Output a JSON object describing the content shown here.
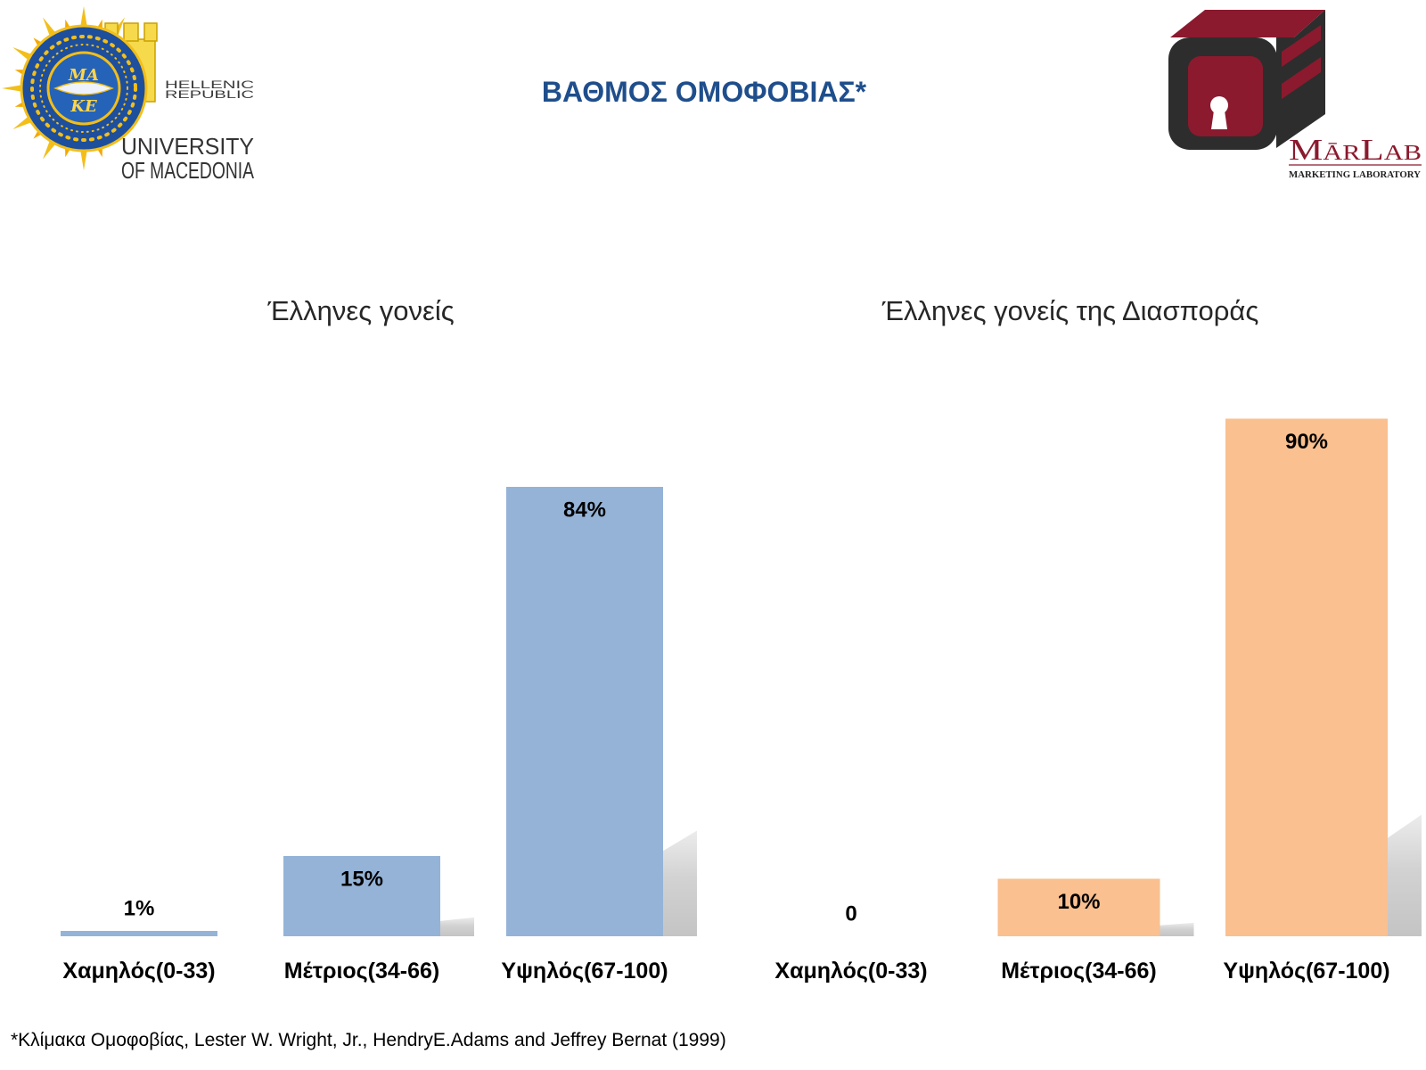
{
  "header": {
    "title": "ΒΑΘΜΟΣ ΟΜΟΦΟΒΙΑΣ*",
    "left_logo": {
      "emblem_top": "ΜΑ",
      "emblem_bottom": "ΚΕ",
      "line1": "HELLENIC",
      "line2": "REPUBLIC",
      "line3": "UNIVERSITY",
      "line4": "OF MACEDONIA",
      "icon": "university-sun-emblem-icon"
    },
    "right_logo": {
      "name": "MārLab",
      "subtitle": "MARKETING LABORATORY",
      "icon": "box-keyhole-icon"
    }
  },
  "colors": {
    "title": "#1F4E8C",
    "brand_maroon": "#8B1A2E",
    "brand_dark": "#2D2D2D",
    "emblem_blue": "#1D4F9C",
    "emblem_gold": "#F2BE1A"
  },
  "chart_data": [
    {
      "type": "bar",
      "title": "Έλληνες γονείς",
      "categories": [
        "Χαμηλός(0-33)",
        "Μέτριος(34-66)",
        "Υψηλός(67-100)"
      ],
      "values": [
        1,
        15,
        84
      ],
      "data_labels": [
        "1%",
        "15%",
        "84%"
      ],
      "color": "#95B3D7",
      "xlabel": "",
      "ylabel": "",
      "ylim": [
        0,
        100
      ],
      "y_axis_visible": false,
      "grid": false,
      "legend": "none"
    },
    {
      "type": "bar",
      "title": "Έλληνες γονείς της Διασποράς",
      "categories": [
        "Χαμηλός(0-33)",
        "Μέτριος(34-66)",
        "Υψηλός(67-100)"
      ],
      "values": [
        0,
        10,
        90
      ],
      "data_labels": [
        "0",
        "10%",
        "90%"
      ],
      "color": "#FAC090",
      "xlabel": "",
      "ylabel": "",
      "ylim": [
        0,
        100
      ],
      "y_axis_visible": false,
      "grid": false,
      "legend": "none"
    }
  ],
  "footnote": "*Κλίμακα Ομοφοβίας, Lester W. Wright, Jr., HendryE.Adams and Jeffrey Bernat (1999)"
}
